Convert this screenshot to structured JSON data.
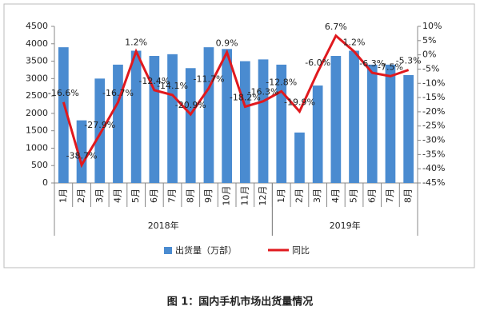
{
  "chart_data": {
    "type": "bar-line",
    "groups": [
      {
        "label": "2018年",
        "categories": [
          "1月",
          "2月",
          "3月",
          "4月",
          "5月",
          "6月",
          "7月",
          "8月",
          "9月",
          "10月",
          "11月",
          "12月"
        ]
      },
      {
        "label": "2019年",
        "categories": [
          "1月",
          "2月",
          "3月",
          "4月",
          "5月",
          "6月",
          "7月",
          "8月"
        ]
      }
    ],
    "series": [
      {
        "name": "出货量（万部）",
        "type": "bar",
        "color": "#4a8bd0",
        "values": [
          3900,
          1800,
          3000,
          3400,
          3800,
          3650,
          3700,
          3300,
          3900,
          3850,
          3500,
          3550,
          3400,
          1450,
          2800,
          3650,
          3800,
          3400,
          3400,
          3100
        ]
      },
      {
        "name": "同比",
        "type": "line",
        "axis": "y2",
        "color": "#e0191e",
        "values": [
          -16.6,
          -38.7,
          -27.9,
          -16.7,
          1.2,
          -12.4,
          -14.1,
          -20.9,
          -11.7,
          0.9,
          -18.2,
          -16.3,
          -12.8,
          -19.9,
          -6.0,
          6.7,
          1.2,
          -6.3,
          -7.5,
          -5.3
        ],
        "value_labels": [
          "-16.6%",
          "-38.7%",
          "-27.9%",
          "-16.7%",
          "1.2%",
          "-12.4%",
          "-14.1%",
          "-20.9%",
          "-11.7%",
          "0.9%",
          "-18.2%",
          "-16.3%",
          "-12.8%",
          "-19.9%",
          "-6.0%",
          "6.7%",
          "1.2%",
          "-6.3%",
          "-7.5%",
          "-5.3%"
        ]
      }
    ],
    "ylim": [
      0,
      4500
    ],
    "yticks": [
      0,
      500,
      1000,
      1500,
      2000,
      2500,
      3000,
      3500,
      4000,
      4500
    ],
    "y2lim": [
      -45,
      10
    ],
    "y2ticks": [
      {
        "value": 10,
        "label": "10%"
      },
      {
        "value": 5,
        "label": "5%"
      },
      {
        "value": 0,
        "label": "0%"
      },
      {
        "value": -5,
        "label": "-5%"
      },
      {
        "value": -10,
        "label": "-10%"
      },
      {
        "value": -15,
        "label": "-15%"
      },
      {
        "value": -20,
        "label": "-20%"
      },
      {
        "value": -25,
        "label": "-25%"
      },
      {
        "value": -30,
        "label": "-30%"
      },
      {
        "value": -35,
        "label": "-35%"
      },
      {
        "value": -40,
        "label": "-40%"
      },
      {
        "value": -45,
        "label": "-45%"
      }
    ],
    "caption": "图 1：国内手机市场出货量情况"
  }
}
